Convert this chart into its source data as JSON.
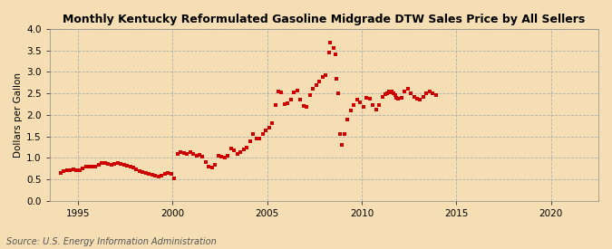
{
  "title": "Monthly Kentucky Reformulated Gasoline Midgrade DTW Sales Price by All Sellers",
  "ylabel": "Dollars per Gallon",
  "source": "Source: U.S. Energy Information Administration",
  "background_color": "#f5deb3",
  "marker_color": "#cc0000",
  "marker": "s",
  "markersize": 2.8,
  "xlim_left": 1993.5,
  "xlim_right": 2022.5,
  "ylim_bottom": 0.0,
  "ylim_top": 4.0,
  "xticks": [
    1995,
    2000,
    2005,
    2010,
    2015,
    2020
  ],
  "yticks": [
    0.0,
    0.5,
    1.0,
    1.5,
    2.0,
    2.5,
    3.0,
    3.5,
    4.0
  ],
  "data": [
    [
      1994.083,
      0.65
    ],
    [
      1994.25,
      0.69
    ],
    [
      1994.417,
      0.71
    ],
    [
      1994.583,
      0.72
    ],
    [
      1994.75,
      0.73
    ],
    [
      1994.917,
      0.72
    ],
    [
      1995.083,
      0.71
    ],
    [
      1995.25,
      0.75
    ],
    [
      1995.417,
      0.79
    ],
    [
      1995.583,
      0.79
    ],
    [
      1995.75,
      0.79
    ],
    [
      1995.917,
      0.8
    ],
    [
      1996.083,
      0.84
    ],
    [
      1996.25,
      0.88
    ],
    [
      1996.417,
      0.87
    ],
    [
      1996.583,
      0.86
    ],
    [
      1996.75,
      0.84
    ],
    [
      1996.917,
      0.86
    ],
    [
      1997.083,
      0.88
    ],
    [
      1997.25,
      0.86
    ],
    [
      1997.417,
      0.84
    ],
    [
      1997.583,
      0.82
    ],
    [
      1997.75,
      0.8
    ],
    [
      1997.917,
      0.78
    ],
    [
      1998.083,
      0.74
    ],
    [
      1998.25,
      0.7
    ],
    [
      1998.417,
      0.66
    ],
    [
      1998.583,
      0.64
    ],
    [
      1998.75,
      0.62
    ],
    [
      1998.917,
      0.6
    ],
    [
      1999.083,
      0.58
    ],
    [
      1999.25,
      0.56
    ],
    [
      1999.417,
      0.58
    ],
    [
      1999.583,
      0.62
    ],
    [
      1999.75,
      0.65
    ],
    [
      1999.917,
      0.62
    ],
    [
      2000.083,
      0.52
    ],
    [
      2000.25,
      1.1
    ],
    [
      2000.417,
      1.14
    ],
    [
      2000.583,
      1.12
    ],
    [
      2000.75,
      1.1
    ],
    [
      2000.917,
      1.14
    ],
    [
      2001.083,
      1.08
    ],
    [
      2001.25,
      1.05
    ],
    [
      2001.417,
      1.06
    ],
    [
      2001.583,
      1.02
    ],
    [
      2001.75,
      0.91
    ],
    [
      2001.917,
      0.79
    ],
    [
      2002.083,
      0.77
    ],
    [
      2002.25,
      0.83
    ],
    [
      2002.417,
      1.04
    ],
    [
      2002.583,
      1.02
    ],
    [
      2002.75,
      1.0
    ],
    [
      2002.917,
      1.04
    ],
    [
      2003.083,
      1.22
    ],
    [
      2003.25,
      1.17
    ],
    [
      2003.417,
      1.1
    ],
    [
      2003.583,
      1.13
    ],
    [
      2003.75,
      1.2
    ],
    [
      2003.917,
      1.24
    ],
    [
      2004.083,
      1.38
    ],
    [
      2004.25,
      1.55
    ],
    [
      2004.417,
      1.45
    ],
    [
      2004.583,
      1.44
    ],
    [
      2004.75,
      1.55
    ],
    [
      2004.917,
      1.63
    ],
    [
      2005.083,
      1.7
    ],
    [
      2005.25,
      1.8
    ],
    [
      2005.417,
      2.22
    ],
    [
      2005.583,
      2.55
    ],
    [
      2005.75,
      2.52
    ],
    [
      2005.917,
      2.25
    ],
    [
      2006.083,
      2.26
    ],
    [
      2006.25,
      2.35
    ],
    [
      2006.417,
      2.52
    ],
    [
      2006.583,
      2.56
    ],
    [
      2006.75,
      2.35
    ],
    [
      2006.917,
      2.2
    ],
    [
      2007.083,
      2.18
    ],
    [
      2007.25,
      2.45
    ],
    [
      2007.417,
      2.6
    ],
    [
      2007.583,
      2.7
    ],
    [
      2007.75,
      2.78
    ],
    [
      2007.917,
      2.88
    ],
    [
      2008.083,
      2.92
    ],
    [
      2008.25,
      3.45
    ],
    [
      2008.333,
      3.68
    ],
    [
      2008.5,
      3.55
    ],
    [
      2008.583,
      3.4
    ],
    [
      2008.667,
      2.85
    ],
    [
      2008.75,
      2.5
    ],
    [
      2008.833,
      1.55
    ],
    [
      2008.917,
      1.3
    ],
    [
      2009.083,
      1.55
    ],
    [
      2009.25,
      1.9
    ],
    [
      2009.417,
      2.1
    ],
    [
      2009.583,
      2.22
    ],
    [
      2009.75,
      2.35
    ],
    [
      2009.917,
      2.3
    ],
    [
      2010.083,
      2.18
    ],
    [
      2010.25,
      2.4
    ],
    [
      2010.417,
      2.38
    ],
    [
      2010.583,
      2.22
    ],
    [
      2010.75,
      2.12
    ],
    [
      2010.917,
      2.22
    ],
    [
      2011.083,
      2.42
    ],
    [
      2011.25,
      2.48
    ],
    [
      2011.333,
      2.5
    ],
    [
      2011.417,
      2.55
    ],
    [
      2011.5,
      2.52
    ],
    [
      2011.583,
      2.55
    ],
    [
      2011.667,
      2.5
    ],
    [
      2011.75,
      2.45
    ],
    [
      2011.833,
      2.4
    ],
    [
      2011.917,
      2.38
    ],
    [
      2012.083,
      2.4
    ],
    [
      2012.25,
      2.55
    ],
    [
      2012.417,
      2.6
    ],
    [
      2012.583,
      2.5
    ],
    [
      2012.75,
      2.42
    ],
    [
      2012.917,
      2.38
    ],
    [
      2013.083,
      2.35
    ],
    [
      2013.25,
      2.42
    ],
    [
      2013.417,
      2.5
    ],
    [
      2013.583,
      2.55
    ],
    [
      2013.75,
      2.5
    ],
    [
      2013.917,
      2.45
    ]
  ]
}
